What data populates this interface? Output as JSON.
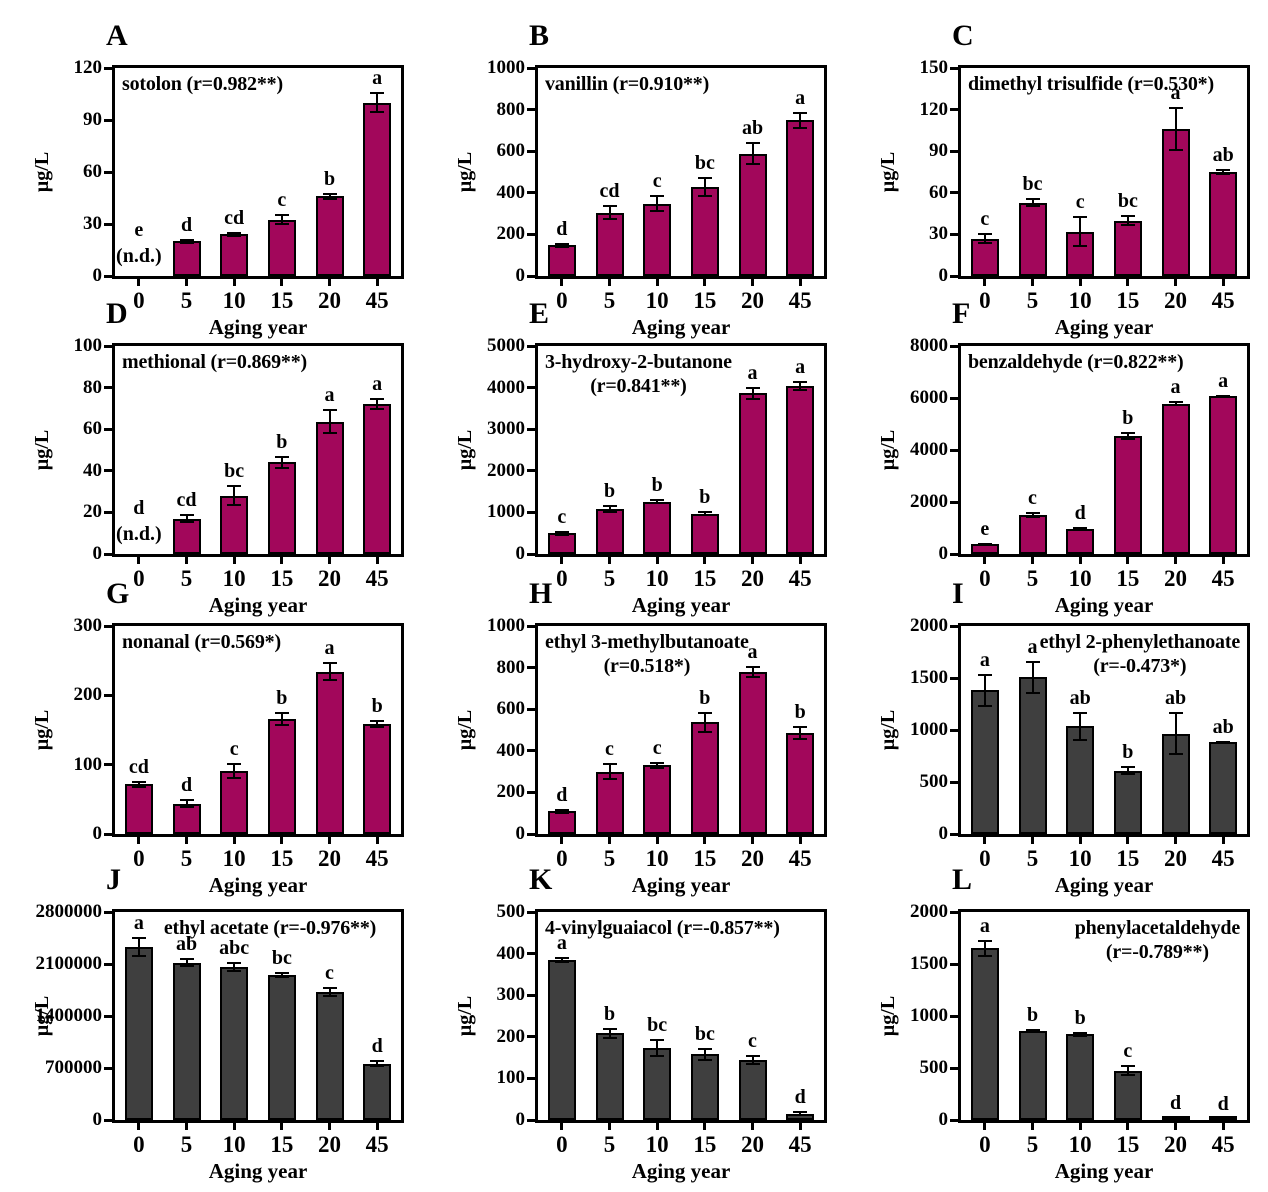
{
  "figure": {
    "xlabel": "Aging year",
    "ylabel": "µg/L",
    "categories": [
      "0",
      "5",
      "10",
      "15",
      "20",
      "45"
    ],
    "colors": {
      "aged_up": "#A2075B",
      "aged_down": "#3F3F3F",
      "axis": "#000000",
      "background": "#FFFFFF"
    }
  },
  "chart_data": [
    {
      "panel": "A",
      "type": "bar",
      "title": "sotolon",
      "r_label": "(r=0.982**)",
      "title_lines": [
        "sotolon (r=0.982**)"
      ],
      "title_pos": "left",
      "color": "#A2075B",
      "xlabel": "Aging year",
      "ylabel": "µg/L",
      "ylim": [
        0,
        120
      ],
      "yticks": [
        0,
        30,
        60,
        90,
        120
      ],
      "categories": [
        "0",
        "5",
        "10",
        "15",
        "20",
        "45"
      ],
      "values": [
        null,
        20,
        24,
        32.5,
        46,
        100
      ],
      "errors": [
        null,
        1.5,
        1.5,
        3,
        2,
        6
      ],
      "sig_letters": [
        "e",
        "d",
        "cd",
        "c",
        "b",
        "a"
      ],
      "nd_label": "(n.d.)"
    },
    {
      "panel": "B",
      "type": "bar",
      "title": "vanillin",
      "r_label": "(r=0.910**)",
      "title_lines": [
        "vanillin (r=0.910**)"
      ],
      "title_pos": "left",
      "color": "#A2075B",
      "xlabel": "Aging year",
      "ylabel": "µg/L",
      "ylim": [
        0,
        1000
      ],
      "yticks": [
        0,
        200,
        400,
        600,
        800,
        1000
      ],
      "categories": [
        "0",
        "5",
        "10",
        "15",
        "20",
        "45"
      ],
      "values": [
        148,
        305,
        348,
        428,
        588,
        748
      ],
      "errors": [
        12,
        35,
        40,
        48,
        55,
        40
      ],
      "sig_letters": [
        "d",
        "cd",
        "c",
        "bc",
        "ab",
        "a"
      ],
      "nd_label": ""
    },
    {
      "panel": "C",
      "type": "bar",
      "title": "dimethyl trisulfide",
      "r_label": "(r=0.530*)",
      "title_lines": [
        "dimethyl trisulfide (r=0.530*)"
      ],
      "title_pos": "left",
      "color": "#A2075B",
      "xlabel": "Aging year",
      "ylabel": "µg/L",
      "ylim": [
        0,
        150
      ],
      "yticks": [
        0,
        30,
        60,
        90,
        120,
        150
      ],
      "categories": [
        "0",
        "5",
        "10",
        "15",
        "20",
        "45"
      ],
      "values": [
        27,
        53,
        32,
        40,
        106,
        75
      ],
      "errors": [
        4,
        3,
        11,
        4,
        16,
        2
      ],
      "sig_letters": [
        "c",
        "bc",
        "c",
        "bc",
        "a",
        "ab"
      ],
      "nd_label": ""
    },
    {
      "panel": "D",
      "type": "bar",
      "title": "methional",
      "r_label": "(r=0.869**)",
      "title_lines": [
        "methional (r=0.869**)"
      ],
      "title_pos": "left",
      "color": "#A2075B",
      "xlabel": "Aging year",
      "ylabel": "µg/L",
      "ylim": [
        0,
        100
      ],
      "yticks": [
        0,
        20,
        40,
        60,
        80,
        100
      ],
      "categories": [
        "0",
        "5",
        "10",
        "15",
        "20",
        "45"
      ],
      "values": [
        null,
        17,
        28,
        44,
        63.5,
        72
      ],
      "errors": [
        null,
        2,
        5,
        3,
        6,
        3
      ],
      "sig_letters": [
        "d",
        "cd",
        "bc",
        "b",
        "a",
        "a"
      ],
      "nd_label": "(n.d.)"
    },
    {
      "panel": "E",
      "type": "bar",
      "title": "3-hydroxy-2-butanone",
      "r_label": "(r=0.841**)",
      "title_lines": [
        "3-hydroxy-2-butanone",
        "(r=0.841**)"
      ],
      "title_pos": "left",
      "color": "#A2075B",
      "xlabel": "Aging year",
      "ylabel": "µg/L",
      "ylim": [
        0,
        5000
      ],
      "yticks": [
        0,
        1000,
        2000,
        3000,
        4000,
        5000
      ],
      "categories": [
        "0",
        "5",
        "10",
        "15",
        "20",
        "45"
      ],
      "values": [
        500,
        1080,
        1260,
        970,
        3860,
        4040
      ],
      "errors": [
        60,
        90,
        60,
        60,
        160,
        110
      ],
      "sig_letters": [
        "c",
        "b",
        "b",
        "b",
        "a",
        "a"
      ],
      "nd_label": ""
    },
    {
      "panel": "F",
      "type": "bar",
      "title": "benzaldehyde",
      "r_label": "(r=0.822**)",
      "title_lines": [
        "benzaldehyde (r=0.822**)"
      ],
      "title_pos": "left",
      "color": "#A2075B",
      "xlabel": "Aging year",
      "ylabel": "µg/L",
      "ylim": [
        0,
        8000
      ],
      "yticks": [
        0,
        2000,
        4000,
        6000,
        8000
      ],
      "categories": [
        "0",
        "5",
        "10",
        "15",
        "20",
        "45"
      ],
      "values": [
        390,
        1500,
        950,
        4550,
        5780,
        6060
      ],
      "errors": [
        40,
        110,
        70,
        160,
        90,
        70
      ],
      "sig_letters": [
        "e",
        "c",
        "d",
        "b",
        "a",
        "a"
      ],
      "nd_label": ""
    },
    {
      "panel": "G",
      "type": "bar",
      "title": "nonanal",
      "r_label": "(r=0.569*)",
      "title_lines": [
        "nonanal (r=0.569*)"
      ],
      "title_pos": "left",
      "color": "#A2075B",
      "xlabel": "Aging year",
      "ylabel": "µg/L",
      "ylim": [
        0,
        300
      ],
      "yticks": [
        0,
        100,
        200,
        300
      ],
      "categories": [
        "0",
        "5",
        "10",
        "15",
        "20",
        "45"
      ],
      "values": [
        72,
        44,
        91,
        166,
        234,
        159
      ],
      "errors": [
        5,
        7,
        12,
        10,
        14,
        6
      ],
      "sig_letters": [
        "cd",
        "d",
        "c",
        "b",
        "a",
        "b"
      ],
      "nd_label": ""
    },
    {
      "panel": "H",
      "type": "bar",
      "title": "ethyl 3-methylbutanoate",
      "r_label": "(r=0.518*)",
      "title_lines": [
        "ethyl 3-methylbutanoate",
        "(r=0.518*)"
      ],
      "title_pos": "left",
      "color": "#A2075B",
      "xlabel": "Aging year",
      "ylabel": "µg/L",
      "ylim": [
        0,
        1000
      ],
      "yticks": [
        0,
        200,
        400,
        600,
        800,
        1000
      ],
      "categories": [
        "0",
        "5",
        "10",
        "15",
        "20",
        "45"
      ],
      "values": [
        110,
        300,
        330,
        537,
        780,
        485
      ],
      "errors": [
        12,
        40,
        18,
        50,
        28,
        32
      ],
      "sig_letters": [
        "d",
        "c",
        "c",
        "b",
        "a",
        "b"
      ],
      "nd_label": ""
    },
    {
      "panel": "I",
      "type": "bar",
      "title": "ethyl 2-phenylethanoate",
      "r_label": "(r=-0.473*)",
      "title_lines": [
        "ethyl 2-phenylethanoate",
        "(r=-0.473*)"
      ],
      "title_pos": "right",
      "color": "#3F3F3F",
      "xlabel": "Aging year",
      "ylabel": "µg/L",
      "ylim": [
        0,
        2000
      ],
      "yticks": [
        0,
        500,
        1000,
        1500,
        2000
      ],
      "categories": [
        "0",
        "5",
        "10",
        "15",
        "20",
        "45"
      ],
      "values": [
        1380,
        1505,
        1035,
        610,
        965,
        880
      ],
      "errors": [
        155,
        155,
        140,
        40,
        210,
        15
      ],
      "sig_letters": [
        "a",
        "a",
        "ab",
        "b",
        "ab",
        "ab"
      ],
      "nd_label": ""
    },
    {
      "panel": "J",
      "type": "bar",
      "title": "ethyl acetate",
      "r_label": "(r=-0.976**)",
      "title_lines": [
        "ethyl acetate (r=-0.976**)"
      ],
      "title_pos": "center",
      "color": "#3F3F3F",
      "xlabel": "Aging year",
      "ylabel": "µg/L",
      "ylim": [
        0,
        2800000
      ],
      "yticks": [
        0,
        700000,
        1400000,
        2100000,
        2800000
      ],
      "categories": [
        "0",
        "5",
        "10",
        "15",
        "20",
        "45"
      ],
      "values": [
        2330000,
        2120000,
        2060000,
        1950000,
        1720000,
        760000
      ],
      "errors": [
        130000,
        60000,
        70000,
        40000,
        70000,
        45000
      ],
      "sig_letters": [
        "a",
        "ab",
        "abc",
        "bc",
        "c",
        "d"
      ],
      "nd_label": ""
    },
    {
      "panel": "K",
      "type": "bar",
      "title": "4-vinylguaiacol",
      "r_label": "(r=-0.857**)",
      "title_lines": [
        "4-vinylguaiacol (r=-0.857**)"
      ],
      "title_pos": "left",
      "color": "#3F3F3F",
      "xlabel": "Aging year",
      "ylabel": "µg/L",
      "ylim": [
        0,
        500
      ],
      "yticks": [
        0,
        100,
        200,
        300,
        400,
        500
      ],
      "categories": [
        "0",
        "5",
        "10",
        "15",
        "20",
        "45"
      ],
      "values": [
        385,
        208,
        173,
        158,
        145,
        15
      ],
      "errors": [
        8,
        13,
        22,
        15,
        12,
        6
      ],
      "sig_letters": [
        "a",
        "b",
        "bc",
        "bc",
        "c",
        "d"
      ],
      "nd_label": ""
    },
    {
      "panel": "L",
      "type": "bar",
      "title": "phenylacetaldehyde",
      "r_label": "(r=-0.789**)",
      "title_lines": [
        "phenylacetaldehyde",
        "(r=-0.789**)"
      ],
      "title_pos": "right",
      "color": "#3F3F3F",
      "xlabel": "Aging year",
      "ylabel": "µg/L",
      "ylim": [
        0,
        2000
      ],
      "yticks": [
        0,
        500,
        1000,
        1500,
        2000
      ],
      "categories": [
        "0",
        "5",
        "10",
        "15",
        "20",
        "45"
      ],
      "values": [
        1650,
        860,
        825,
        475,
        20,
        5
      ],
      "errors": [
        80,
        15,
        25,
        55,
        12,
        4
      ],
      "sig_letters": [
        "a",
        "b",
        "b",
        "c",
        "d",
        "d"
      ],
      "nd_label": ""
    }
  ]
}
